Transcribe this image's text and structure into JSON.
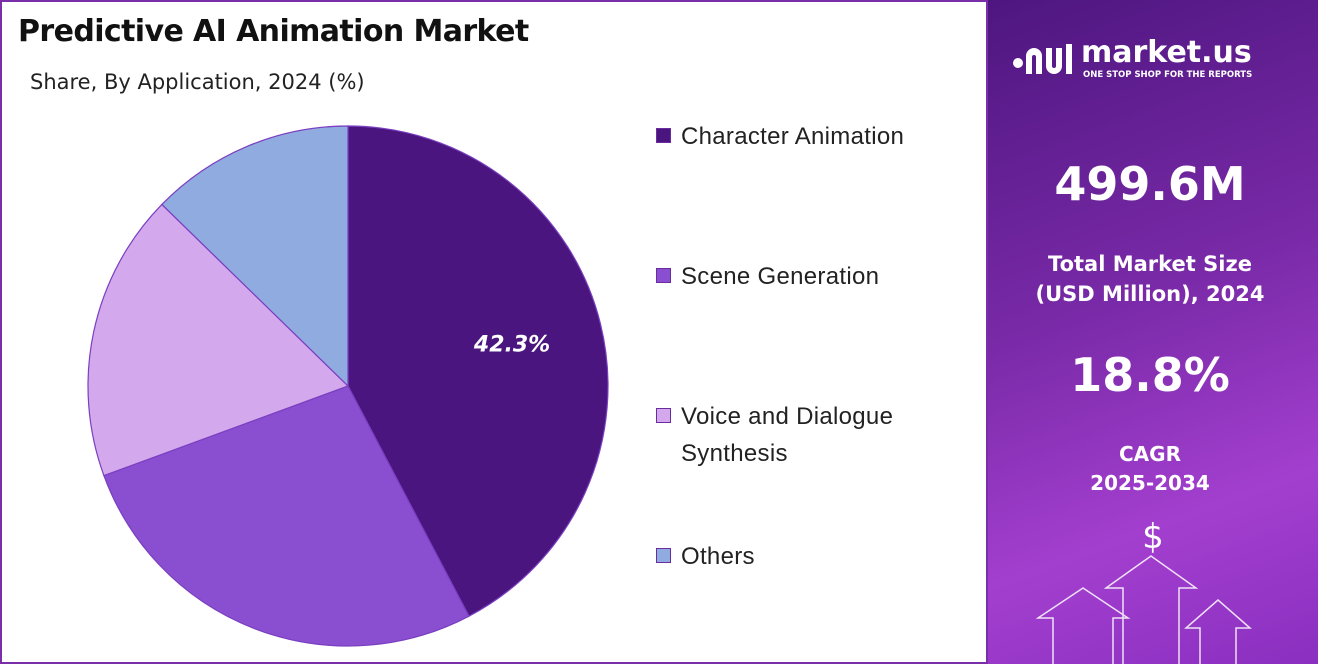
{
  "chart_data": {
    "type": "pie",
    "title": "Predictive AI Animation Market",
    "subtitle": "Share, By Application, 2024 (%)",
    "categories": [
      "Character Animation",
      "Scene Generation",
      "Voice and Dialogue Synthesis",
      "Others"
    ],
    "values": [
      42.3,
      27.1,
      17.9,
      12.7
    ],
    "value_labels": [
      "42.3%",
      null,
      null,
      null
    ],
    "colors": [
      "#4b1580",
      "#8a4fd0",
      "#d4a8ec",
      "#8fabdf"
    ],
    "legend": "right"
  },
  "side_panel": {
    "brand": "market.us",
    "tagline": "ONE STOP SHOP FOR THE REPORTS",
    "market_size": "499.6M",
    "market_size_label": [
      "Total Market Size",
      "(USD Million), 2024"
    ],
    "cagr": "18.8%",
    "cagr_label": [
      "CAGR",
      "2025-2034"
    ],
    "icon": "$"
  }
}
